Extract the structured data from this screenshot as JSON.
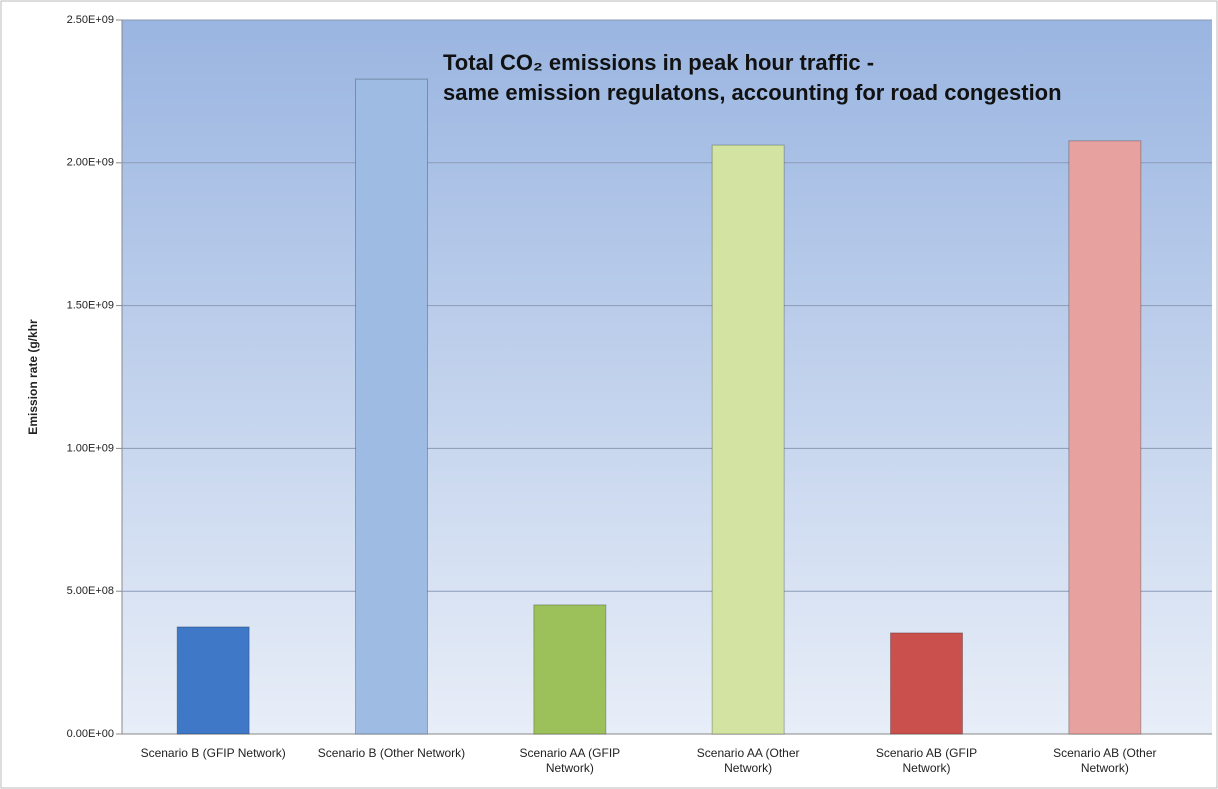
{
  "chart_data": {
    "type": "bar",
    "title": "Total CO₂ emissions in peak hour traffic -\nsame emission regulatons, accounting for road congestion",
    "y_label": "Emission  rate (g/khr",
    "categories": [
      "Scenario B (GFIP Network)",
      "Scenario B (Other Network)",
      "Scenario AA (GFIP Network)",
      "Scenario AA (Other Network)",
      "Scenario AB (GFIP Network)",
      "Scenario AB (Other Network)"
    ],
    "values": [
      375000000,
      2293000000,
      452000000,
      2062000000,
      354000000,
      2077000000
    ],
    "colors": [
      "#3f78c6",
      "#9dbbe3",
      "#9cc05a",
      "#d3e3a1",
      "#c9504d",
      "#e7a19f"
    ],
    "ylim": [
      0,
      2500000000
    ],
    "yticks": [
      {
        "value": 0,
        "label": "0.00E+00"
      },
      {
        "value": 500000000,
        "label": "5.00E+08"
      },
      {
        "value": 1000000000,
        "label": "1.00E+09"
      },
      {
        "value": 1500000000,
        "label": "1.50E+09"
      },
      {
        "value": 2000000000,
        "label": "2.00E+09"
      },
      {
        "value": 2500000000,
        "label": "2.50E+09"
      }
    ],
    "grid": true
  }
}
